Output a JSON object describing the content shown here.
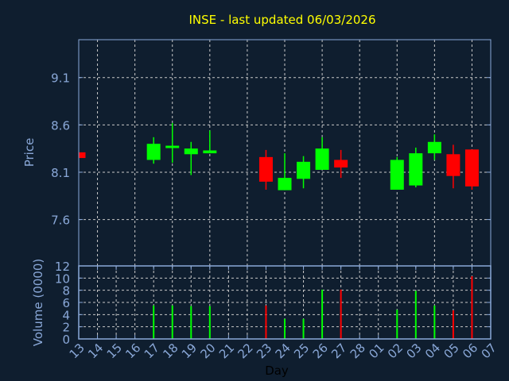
{
  "chart_data": [
    {
      "type": "candlestick",
      "title": "INSE - last updated 06/03/2026",
      "ylabel": "Price",
      "xlabel": "Day",
      "ylim": [
        7.11,
        9.5
      ],
      "yticks": [
        7.6,
        8.1,
        8.6,
        9.1
      ],
      "ytick_labels": [
        "7.6",
        "8.1",
        "8.6",
        "9.1"
      ],
      "grid": true,
      "colors": {
        "up": "#00ff00",
        "down": "#ff0000",
        "title": "#ffff00",
        "axis": "#8aa8d8",
        "background": "#0f1e2f",
        "grid": "#c8c8c8"
      },
      "categories": [
        "13",
        "14",
        "15",
        "16",
        "17",
        "18",
        "19",
        "20",
        "21",
        "22",
        "23",
        "24",
        "25",
        "26",
        "27",
        "28",
        "01",
        "02",
        "03",
        "04",
        "05",
        "06",
        "07"
      ],
      "candles": [
        {
          "day": "13",
          "open": 8.31,
          "high": 8.31,
          "low": 8.25,
          "close": 8.25
        },
        {
          "day": "17",
          "open": 8.23,
          "high": 8.47,
          "low": 8.19,
          "close": 8.4
        },
        {
          "day": "18",
          "open": 8.355,
          "high": 8.62,
          "low": 8.2,
          "close": 8.38
        },
        {
          "day": "19",
          "open": 8.29,
          "high": 8.42,
          "low": 8.07,
          "close": 8.35
        },
        {
          "day": "20",
          "open": 8.3,
          "high": 8.54,
          "low": 8.3,
          "close": 8.33
        },
        {
          "day": "23",
          "open": 8.26,
          "high": 8.335,
          "low": 7.915,
          "close": 8.0
        },
        {
          "day": "24",
          "open": 7.91,
          "high": 8.3,
          "low": 7.91,
          "close": 8.04
        },
        {
          "day": "25",
          "open": 8.03,
          "high": 8.27,
          "low": 7.93,
          "close": 8.21
        },
        {
          "day": "26",
          "open": 8.125,
          "high": 8.47,
          "low": 8.125,
          "close": 8.35
        },
        {
          "day": "27",
          "open": 8.23,
          "high": 8.335,
          "low": 8.04,
          "close": 8.15
        },
        {
          "day": "02",
          "open": 7.915,
          "high": 8.26,
          "low": 7.915,
          "close": 8.23
        },
        {
          "day": "03",
          "open": 7.96,
          "high": 8.36,
          "low": 7.94,
          "close": 8.3
        },
        {
          "day": "04",
          "open": 8.3,
          "high": 8.5,
          "low": 8.23,
          "close": 8.42
        },
        {
          "day": "05",
          "open": 8.29,
          "high": 8.39,
          "low": 7.93,
          "close": 8.06
        },
        {
          "day": "06",
          "open": 8.34,
          "high": 8.34,
          "low": 7.915,
          "close": 7.95
        }
      ]
    },
    {
      "type": "bar",
      "ylabel": "Volume (0000)",
      "xlabel": "Day",
      "ylim": [
        0,
        12
      ],
      "yticks": [
        0,
        2,
        4,
        6,
        8,
        10,
        12
      ],
      "ytick_labels": [
        "0",
        "2",
        "4",
        "6",
        "8",
        "10",
        "12"
      ],
      "grid": true,
      "bars": [
        {
          "day": "17",
          "value": 5.5,
          "direction": "up"
        },
        {
          "day": "18",
          "value": 5.5,
          "direction": "up"
        },
        {
          "day": "19",
          "value": 5.4,
          "direction": "up"
        },
        {
          "day": "20",
          "value": 5.4,
          "direction": "up"
        },
        {
          "day": "23",
          "value": 5.5,
          "direction": "down"
        },
        {
          "day": "24",
          "value": 3.3,
          "direction": "up"
        },
        {
          "day": "25",
          "value": 3.3,
          "direction": "up"
        },
        {
          "day": "26",
          "value": 8.1,
          "direction": "up"
        },
        {
          "day": "27",
          "value": 8.1,
          "direction": "down"
        },
        {
          "day": "02",
          "value": 4.8,
          "direction": "up"
        },
        {
          "day": "03",
          "value": 7.9,
          "direction": "up"
        },
        {
          "day": "04",
          "value": 5.5,
          "direction": "up"
        },
        {
          "day": "05",
          "value": 4.7,
          "direction": "down"
        },
        {
          "day": "06",
          "value": 10.3,
          "direction": "down"
        }
      ]
    }
  ]
}
